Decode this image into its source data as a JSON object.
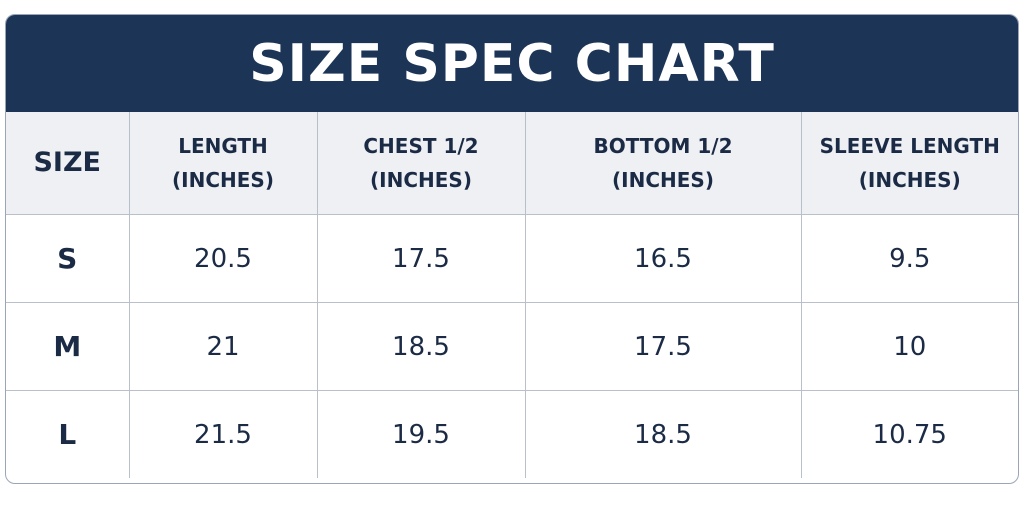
{
  "title": "SIZE SPEC CHART",
  "table": {
    "header": [
      [
        "SIZE"
      ],
      [
        "LENGTH",
        "(INCHES)"
      ],
      [
        "CHEST 1/2",
        "(INCHES)"
      ],
      [
        "BOTTOM 1/2",
        "(INCHES)"
      ],
      [
        "SLEEVE LENGTH",
        "(INCHES)"
      ]
    ],
    "rows": [
      [
        "S",
        "20.5",
        "17.5",
        "16.5",
        "9.5"
      ],
      [
        "M",
        "21",
        "18.5",
        "17.5",
        "10"
      ],
      [
        "L",
        "21.5",
        "19.5",
        "18.5",
        "10.75"
      ]
    ]
  }
}
